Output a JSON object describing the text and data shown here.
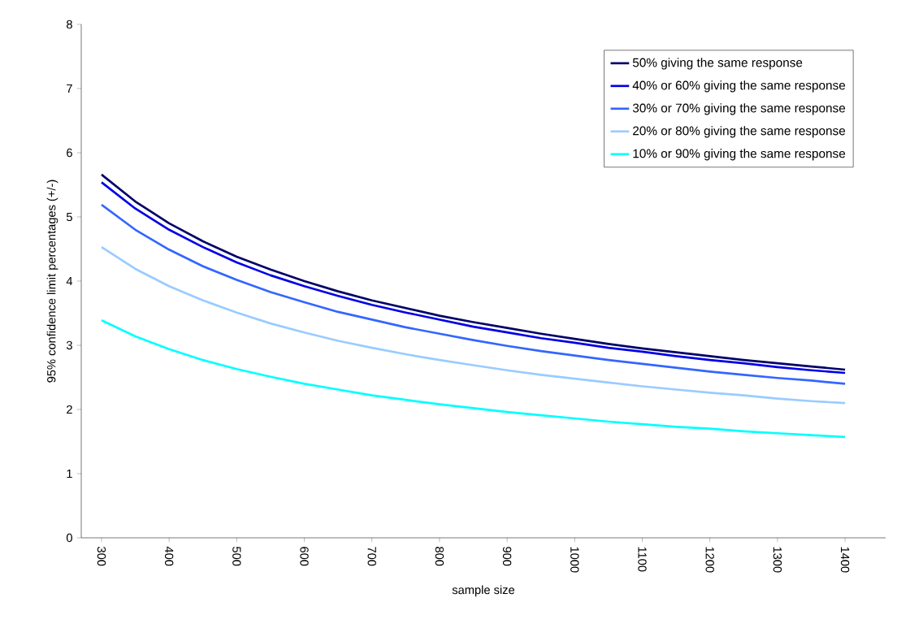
{
  "chart_data": {
    "type": "line",
    "xlabel": "sample size",
    "ylabel": "95% confidence limit percentages (+/-)",
    "x": [
      300,
      350,
      400,
      450,
      500,
      550,
      600,
      650,
      700,
      750,
      800,
      850,
      900,
      950,
      1000,
      1050,
      1100,
      1150,
      1200,
      1250,
      1300,
      1350,
      1400
    ],
    "xlim": [
      270,
      1460
    ],
    "xticks": [
      300,
      400,
      500,
      600,
      700,
      800,
      900,
      1000,
      1100,
      1200,
      1300,
      1400
    ],
    "ylim": [
      0,
      8
    ],
    "yticks": [
      0,
      1,
      2,
      3,
      4,
      5,
      6,
      7,
      8
    ],
    "legend": "top right",
    "grid": false,
    "marker": "none",
    "line_style": "solid",
    "series": [
      {
        "name": "50% giving the same response",
        "color": "#000066",
        "values": [
          5.66,
          5.24,
          4.9,
          4.62,
          4.38,
          4.18,
          4.0,
          3.84,
          3.7,
          3.58,
          3.46,
          3.36,
          3.27,
          3.18,
          3.1,
          3.02,
          2.95,
          2.89,
          2.83,
          2.77,
          2.72,
          2.67,
          2.62
        ]
      },
      {
        "name": "40% or 60% giving the same response",
        "color": "#0000e6",
        "values": [
          5.54,
          5.13,
          4.8,
          4.53,
          4.29,
          4.09,
          3.92,
          3.77,
          3.63,
          3.51,
          3.4,
          3.29,
          3.2,
          3.11,
          3.04,
          2.96,
          2.9,
          2.83,
          2.77,
          2.72,
          2.66,
          2.61,
          2.57
        ]
      },
      {
        "name": "30% or 70% giving the same response",
        "color": "#3366ff",
        "values": [
          5.19,
          4.8,
          4.49,
          4.23,
          4.02,
          3.83,
          3.67,
          3.52,
          3.4,
          3.28,
          3.18,
          3.08,
          2.99,
          2.91,
          2.84,
          2.77,
          2.71,
          2.65,
          2.59,
          2.54,
          2.49,
          2.45,
          2.4
        ]
      },
      {
        "name": "20% or 80% giving the same response",
        "color": "#99ccff",
        "values": [
          4.53,
          4.19,
          3.92,
          3.7,
          3.51,
          3.34,
          3.2,
          3.07,
          2.96,
          2.86,
          2.77,
          2.69,
          2.61,
          2.54,
          2.48,
          2.42,
          2.36,
          2.31,
          2.26,
          2.22,
          2.17,
          2.13,
          2.1
        ]
      },
      {
        "name": "10% or 90% giving the same response",
        "color": "#00ffff",
        "values": [
          3.39,
          3.14,
          2.94,
          2.77,
          2.63,
          2.51,
          2.4,
          2.31,
          2.22,
          2.15,
          2.08,
          2.02,
          1.96,
          1.91,
          1.86,
          1.81,
          1.77,
          1.73,
          1.7,
          1.66,
          1.63,
          1.6,
          1.57
        ]
      }
    ]
  }
}
